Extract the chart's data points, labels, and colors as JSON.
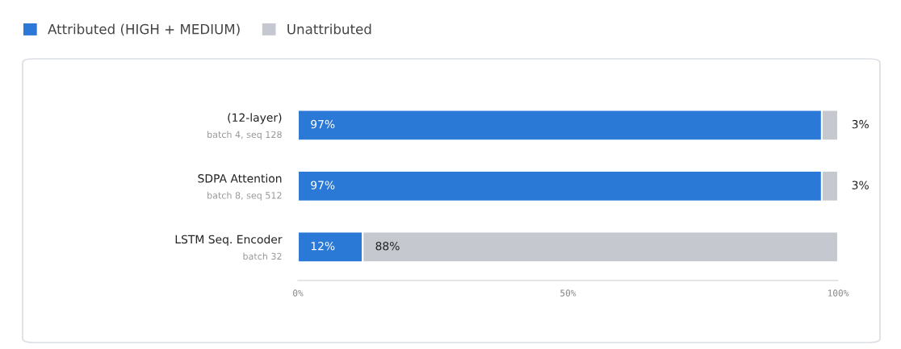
{
  "chart_data": {
    "type": "bar",
    "orientation": "horizontal",
    "stacked": true,
    "categories": [
      "(12-layer)\nbatch 4, seq 128",
      "SDPA Attention\nbatch 8, seq 512",
      "LSTM Seq. Encoder\nbatch 32"
    ],
    "series": [
      {
        "name": "Attributed (HIGH + MEDIUM)",
        "color": "#2b79d6",
        "values": [
          97,
          97,
          12
        ],
        "value_labels": [
          "97%",
          "97%",
          "12%"
        ]
      },
      {
        "name": "Unattributed",
        "color": "#c5c9cf",
        "values": [
          3,
          3,
          88
        ],
        "value_labels": [
          "3%",
          "3%",
          "88%"
        ]
      }
    ],
    "xlim": [
      0,
      100
    ],
    "xticks": [
      {
        "value": 0,
        "label": "0%"
      },
      {
        "value": 50,
        "label": "50%"
      },
      {
        "value": 100,
        "label": "100%"
      }
    ],
    "grid": false,
    "legend": "top left"
  }
}
